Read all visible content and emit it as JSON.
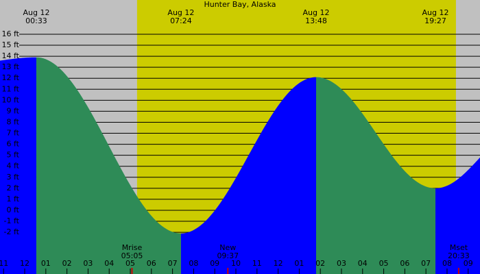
{
  "chart_data": {
    "type": "tide",
    "title": "Hunter Bay, Alaska",
    "x": [
      -1.17,
      0.55,
      7.4,
      13.8,
      19.45,
      21.56
    ],
    "values": [
      13.6,
      13.9,
      -2.1,
      12.1,
      2.0,
      4.8
    ],
    "events": [
      {
        "date": "Aug 12",
        "time": "00:33"
      },
      {
        "date": "Aug 12",
        "time": "07:24"
      },
      {
        "date": "Aug 12",
        "time": "13:48"
      },
      {
        "date": "Aug 12",
        "time": "19:27"
      }
    ],
    "moon": [
      {
        "label": "Mrise",
        "time": "05:05",
        "x": 5.08
      },
      {
        "label": "New",
        "time": "09:37",
        "x": 9.62
      },
      {
        "label": "Mset",
        "time": "20:33",
        "x": 20.55
      }
    ],
    "day_span": [
      5.32,
      20.42
    ],
    "night_color": "#c0c0c0",
    "day_color": "#cccc00",
    "rise_color": "#0000ff",
    "fall_color": "#2e8b57",
    "moon_tick_color": "#cc0000",
    "xlim": [
      -1.17,
      21.56
    ],
    "ylim": [
      -5.79,
      19.11
    ],
    "xticks": [
      {
        "value": -1,
        "label": "11"
      },
      {
        "value": 0,
        "label": "12"
      },
      {
        "value": 1,
        "label": "01"
      },
      {
        "value": 2,
        "label": "02"
      },
      {
        "value": 3,
        "label": "03"
      },
      {
        "value": 4,
        "label": "04"
      },
      {
        "value": 5,
        "label": "05"
      },
      {
        "value": 6,
        "label": "06"
      },
      {
        "value": 7,
        "label": "07"
      },
      {
        "value": 8,
        "label": "08"
      },
      {
        "value": 9,
        "label": "09"
      },
      {
        "value": 10,
        "label": "10"
      },
      {
        "value": 11,
        "label": "11"
      },
      {
        "value": 12,
        "label": "12"
      },
      {
        "value": 13,
        "label": "01"
      },
      {
        "value": 14,
        "label": "02"
      },
      {
        "value": 15,
        "label": "03"
      },
      {
        "value": 16,
        "label": "04"
      },
      {
        "value": 17,
        "label": "05"
      },
      {
        "value": 18,
        "label": "06"
      },
      {
        "value": 19,
        "label": "07"
      },
      {
        "value": 20,
        "label": "08"
      },
      {
        "value": 21,
        "label": "09"
      }
    ],
    "yticks": [
      {
        "value": 16,
        "label": "16 ft"
      },
      {
        "value": 15,
        "label": "15 ft"
      },
      {
        "value": 14,
        "label": "14 ft"
      },
      {
        "value": 13,
        "label": "13 ft"
      },
      {
        "value": 12,
        "label": "12 ft"
      },
      {
        "value": 11,
        "label": "11 ft"
      },
      {
        "value": 10,
        "label": "10 ft"
      },
      {
        "value": 9,
        "label": "9 ft"
      },
      {
        "value": 8,
        "label": "8 ft"
      },
      {
        "value": 7,
        "label": "7 ft"
      },
      {
        "value": 6,
        "label": "6 ft"
      },
      {
        "value": 5,
        "label": "5 ft"
      },
      {
        "value": 4,
        "label": "4 ft"
      },
      {
        "value": 3,
        "label": "3 ft"
      },
      {
        "value": 2,
        "label": "2 ft"
      },
      {
        "value": 1,
        "label": "1 ft"
      },
      {
        "value": 0,
        "label": "0 ft"
      },
      {
        "value": -1,
        "label": "-1 ft"
      },
      {
        "value": -2,
        "label": "-2 ft"
      }
    ]
  }
}
